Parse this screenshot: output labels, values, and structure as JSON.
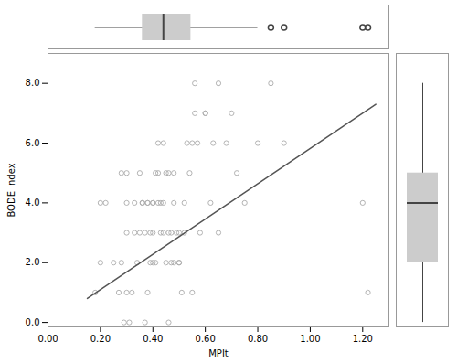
{
  "chart_data": [
    {
      "type": "box",
      "orientation": "horizontal",
      "color": "#cccccc",
      "tick_labels": false,
      "xlim": [
        0.0,
        1.3
      ],
      "values": [
        0.18,
        0.2,
        0.2,
        0.22,
        0.25,
        0.27,
        0.28,
        0.28,
        0.29,
        0.3,
        0.3,
        0.3,
        0.3,
        0.31,
        0.32,
        0.33,
        0.33,
        0.34,
        0.35,
        0.35,
        0.36,
        0.36,
        0.37,
        0.37,
        0.38,
        0.38,
        0.38,
        0.39,
        0.39,
        0.4,
        0.4,
        0.4,
        0.4,
        0.41,
        0.41,
        0.42,
        0.42,
        0.42,
        0.43,
        0.43,
        0.44,
        0.44,
        0.44,
        0.45,
        0.45,
        0.46,
        0.46,
        0.46,
        0.47,
        0.47,
        0.48,
        0.48,
        0.48,
        0.49,
        0.5,
        0.5,
        0.5,
        0.51,
        0.52,
        0.52,
        0.53,
        0.54,
        0.55,
        0.55,
        0.56,
        0.56,
        0.57,
        0.58,
        0.6,
        0.6,
        0.62,
        0.63,
        0.65,
        0.65,
        0.68,
        0.7,
        0.72,
        0.75,
        0.8,
        0.85,
        0.9,
        1.2,
        1.22
      ]
    },
    {
      "type": "scatter",
      "xlabel": "MPIt",
      "ylabel": "BODE index",
      "xlim": [
        0.0,
        1.3
      ],
      "ylim": [
        -0.15,
        9.0
      ],
      "xticks": [
        {
          "value": 0.0,
          "label": "0.00"
        },
        {
          "value": 0.2,
          "label": "0.20"
        },
        {
          "value": 0.4,
          "label": "0.40"
        },
        {
          "value": 0.6,
          "label": "0.60"
        },
        {
          "value": 0.8,
          "label": "0.80"
        },
        {
          "value": 1.0,
          "label": "1.00"
        },
        {
          "value": 1.2,
          "label": "1.20"
        }
      ],
      "yticks": [
        {
          "value": 0.0,
          "label": "0.0"
        },
        {
          "value": 2.0,
          "label": "2.0"
        },
        {
          "value": 4.0,
          "label": "4.0"
        },
        {
          "value": 6.0,
          "label": "6.0"
        },
        {
          "value": 8.0,
          "label": "8.0"
        }
      ],
      "series": [
        {
          "type": "scatter",
          "marker": "circle",
          "color": "#aaaaaa",
          "x": [
            0.18,
            0.2,
            0.2,
            0.22,
            0.25,
            0.27,
            0.28,
            0.28,
            0.29,
            0.3,
            0.3,
            0.3,
            0.3,
            0.31,
            0.32,
            0.33,
            0.33,
            0.34,
            0.35,
            0.35,
            0.36,
            0.36,
            0.37,
            0.37,
            0.38,
            0.38,
            0.38,
            0.39,
            0.39,
            0.4,
            0.4,
            0.4,
            0.4,
            0.41,
            0.41,
            0.42,
            0.42,
            0.42,
            0.43,
            0.43,
            0.44,
            0.44,
            0.44,
            0.45,
            0.45,
            0.46,
            0.46,
            0.46,
            0.47,
            0.47,
            0.48,
            0.48,
            0.48,
            0.49,
            0.5,
            0.5,
            0.5,
            0.51,
            0.52,
            0.52,
            0.53,
            0.54,
            0.55,
            0.55,
            0.56,
            0.56,
            0.57,
            0.58,
            0.6,
            0.6,
            0.62,
            0.63,
            0.65,
            0.65,
            0.68,
            0.7,
            0.72,
            0.75,
            0.8,
            0.85,
            0.9,
            1.2,
            1.22
          ],
          "values": [
            1.0,
            2.0,
            4.0,
            4.0,
            2.0,
            1.0,
            2.0,
            5.0,
            0.0,
            3.0,
            4.0,
            5.0,
            1.0,
            0.0,
            1.0,
            3.0,
            4.0,
            2.0,
            3.0,
            5.0,
            4.0,
            4.0,
            0.0,
            3.0,
            4.0,
            4.0,
            1.0,
            2.0,
            3.0,
            2.0,
            4.0,
            4.0,
            3.0,
            2.0,
            5.0,
            4.0,
            5.0,
            6.0,
            3.0,
            4.0,
            4.0,
            6.0,
            3.0,
            2.0,
            5.0,
            0.0,
            3.0,
            5.0,
            2.0,
            3.0,
            2.0,
            5.0,
            4.0,
            3.0,
            2.0,
            3.0,
            2.0,
            1.0,
            4.0,
            3.0,
            6.0,
            5.0,
            1.0,
            6.0,
            8.0,
            7.0,
            6.0,
            3.0,
            7.0,
            7.0,
            4.0,
            6.0,
            8.0,
            3.0,
            6.0,
            7.0,
            5.0,
            4.0,
            6.0,
            8.0,
            6.0,
            4.0,
            1.0
          ]
        },
        {
          "type": "line",
          "color": "#555555",
          "x": [
            0.15,
            1.25
          ],
          "values": [
            0.8,
            7.3
          ]
        }
      ]
    },
    {
      "type": "box",
      "color": "#cccccc",
      "tick_labels": false,
      "ylim": [
        -0.15,
        9.0
      ],
      "values": [
        1.0,
        2.0,
        4.0,
        4.0,
        2.0,
        1.0,
        2.0,
        5.0,
        0.0,
        3.0,
        4.0,
        5.0,
        1.0,
        0.0,
        1.0,
        3.0,
        4.0,
        2.0,
        3.0,
        5.0,
        4.0,
        4.0,
        0.0,
        3.0,
        4.0,
        4.0,
        1.0,
        2.0,
        3.0,
        2.0,
        4.0,
        4.0,
        3.0,
        2.0,
        5.0,
        4.0,
        5.0,
        6.0,
        3.0,
        4.0,
        4.0,
        6.0,
        3.0,
        2.0,
        5.0,
        0.0,
        3.0,
        5.0,
        2.0,
        3.0,
        2.0,
        5.0,
        4.0,
        3.0,
        2.0,
        3.0,
        2.0,
        1.0,
        4.0,
        3.0,
        6.0,
        5.0,
        1.0,
        6.0,
        8.0,
        7.0,
        6.0,
        3.0,
        7.0,
        7.0,
        4.0,
        6.0,
        8.0,
        3.0,
        6.0,
        7.0,
        5.0,
        4.0,
        6.0,
        8.0,
        6.0,
        4.0,
        1.0
      ]
    }
  ]
}
